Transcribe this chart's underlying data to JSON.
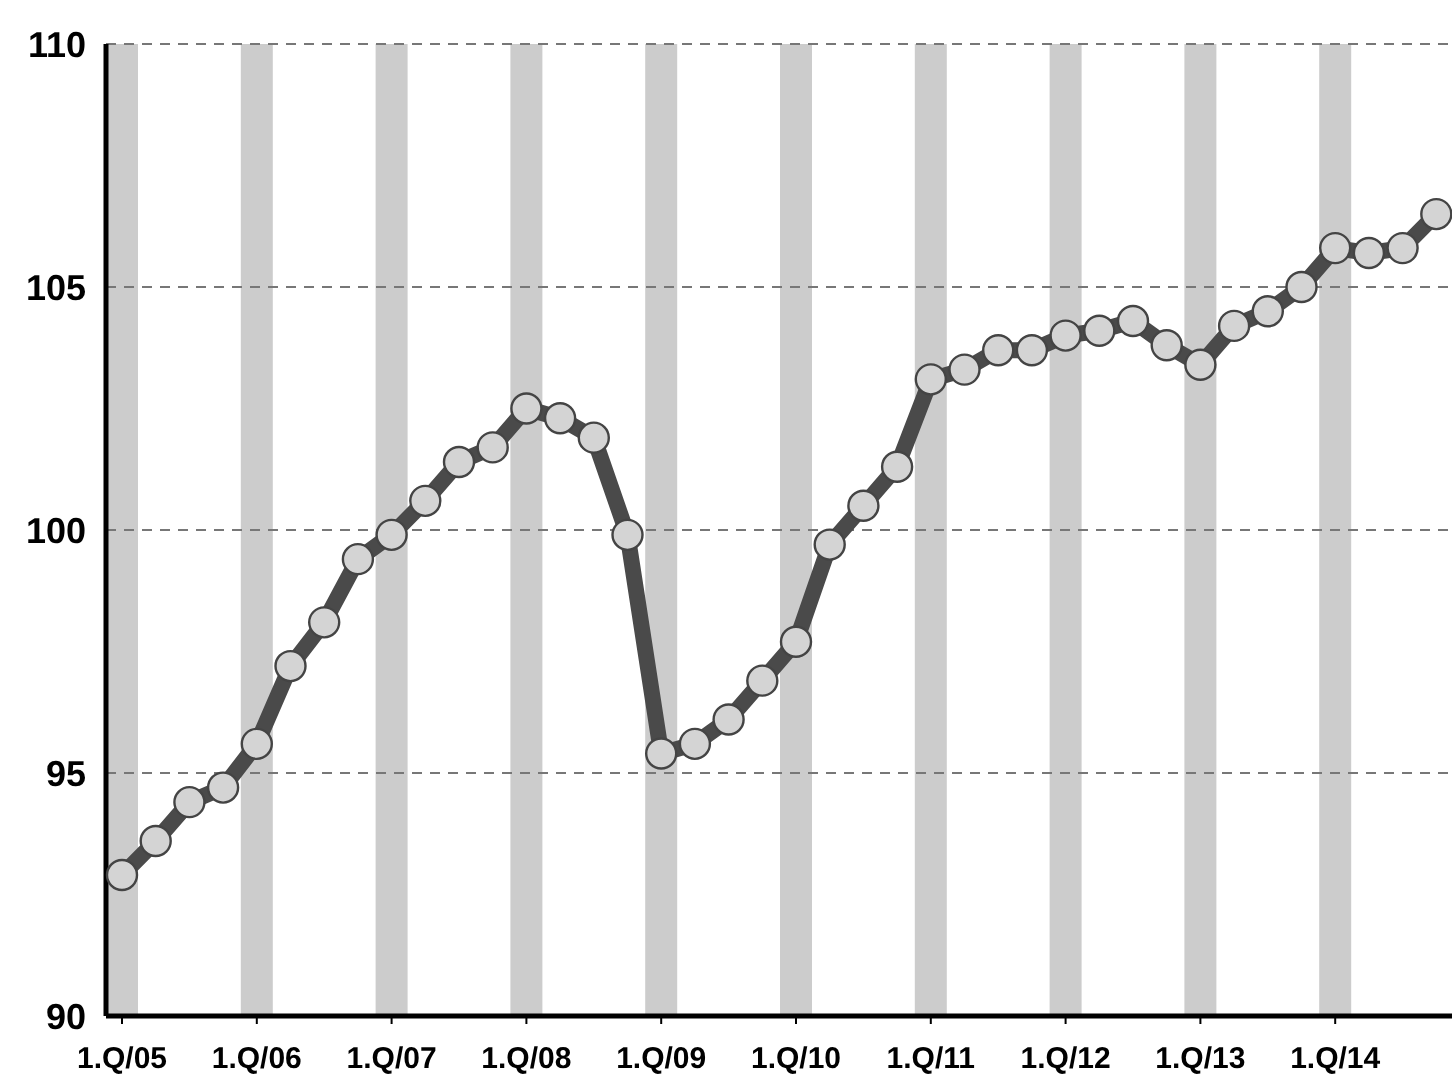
{
  "chart_data": {
    "type": "line",
    "categories": [
      "1.Q/05",
      null,
      null,
      null,
      "1.Q/06",
      null,
      null,
      null,
      "1.Q/07",
      null,
      null,
      null,
      "1.Q/08",
      null,
      null,
      null,
      "1.Q/09",
      null,
      null,
      null,
      "1.Q/10",
      null,
      null,
      null,
      "1.Q/11",
      null,
      null,
      null,
      "1.Q/12",
      null,
      null,
      null,
      "1.Q/13",
      null,
      null,
      null,
      "1.Q/14",
      null,
      null,
      null
    ],
    "series": [
      {
        "color": "#4a4a4a",
        "values": [
          92.9,
          93.6,
          94.4,
          94.7,
          95.6,
          97.2,
          98.1,
          99.4,
          99.9,
          100.6,
          101.4,
          101.7,
          102.5,
          102.3,
          101.9,
          99.9,
          95.4,
          95.6,
          96.1,
          96.9,
          97.7,
          99.7,
          100.5,
          101.3,
          103.1,
          103.3,
          103.7,
          103.7,
          104.0,
          104.1,
          104.3,
          103.8,
          103.4,
          104.2,
          104.5,
          105.0,
          105.8,
          105.7,
          105.8,
          106.5
        ]
      }
    ],
    "bands": [
      {
        "axis": "x",
        "from": "1.Q/05",
        "to": "1.Q/05",
        "color": "#cccccc"
      },
      {
        "axis": "x",
        "from": "1.Q/06",
        "to": "1.Q/06",
        "color": "#cccccc"
      },
      {
        "axis": "x",
        "from": "1.Q/07",
        "to": "1.Q/07",
        "color": "#cccccc"
      },
      {
        "axis": "x",
        "from": "1.Q/08",
        "to": "1.Q/08",
        "color": "#cccccc"
      },
      {
        "axis": "x",
        "from": "1.Q/09",
        "to": "1.Q/09",
        "color": "#cccccc"
      },
      {
        "axis": "x",
        "from": "1.Q/10",
        "to": "1.Q/10",
        "color": "#cccccc"
      },
      {
        "axis": "x",
        "from": "1.Q/11",
        "to": "1.Q/11",
        "color": "#cccccc"
      },
      {
        "axis": "x",
        "from": "1.Q/12",
        "to": "1.Q/12",
        "color": "#cccccc"
      },
      {
        "axis": "x",
        "from": "1.Q/13",
        "to": "1.Q/13",
        "color": "#cccccc"
      },
      {
        "axis": "x",
        "from": "1.Q/14",
        "to": "1.Q/14",
        "color": "#cccccc"
      }
    ],
    "ylim": [
      90,
      110
    ],
    "yticks": [
      90,
      95,
      100,
      105,
      110
    ],
    "grid": true,
    "marker": "circle",
    "line_style": "solid"
  }
}
